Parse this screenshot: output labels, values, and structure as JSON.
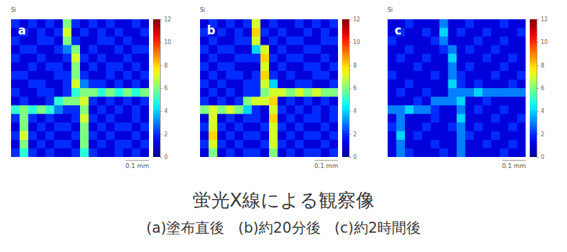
{
  "chart_data": [
    {
      "type": "heatmap",
      "title": "Si",
      "panel_label": "a",
      "scale_bar": "0.1 mm",
      "tick_labels": false,
      "colorbar": {
        "range": [
          0,
          12
        ],
        "ticks": [
          0,
          2,
          4,
          6,
          8,
          10,
          12
        ]
      },
      "cells": [
        [
          2,
          1,
          2,
          1,
          2,
          1,
          6,
          2,
          1,
          2,
          1,
          2,
          1,
          1,
          2,
          1
        ],
        [
          1,
          2,
          1,
          2,
          1,
          2,
          7,
          1,
          2,
          1,
          2,
          1,
          2,
          1,
          1,
          2
        ],
        [
          2,
          1,
          1,
          2,
          2,
          1,
          6,
          2,
          1,
          1,
          2,
          2,
          1,
          2,
          1,
          1
        ],
        [
          1,
          2,
          2,
          1,
          1,
          2,
          3,
          6,
          1,
          2,
          1,
          1,
          2,
          1,
          2,
          2
        ],
        [
          2,
          1,
          1,
          2,
          1,
          1,
          2,
          7,
          2,
          1,
          2,
          1,
          1,
          2,
          1,
          1
        ],
        [
          1,
          1,
          2,
          1,
          2,
          2,
          1,
          6,
          1,
          2,
          1,
          2,
          2,
          1,
          2,
          1
        ],
        [
          2,
          2,
          1,
          1,
          1,
          2,
          2,
          6,
          2,
          1,
          1,
          2,
          1,
          2,
          1,
          2
        ],
        [
          1,
          1,
          2,
          2,
          1,
          1,
          2,
          7,
          3,
          2,
          2,
          1,
          2,
          1,
          2,
          1
        ],
        [
          2,
          1,
          1,
          2,
          2,
          1,
          2,
          5,
          6,
          6,
          5,
          6,
          5,
          6,
          5,
          6
        ],
        [
          1,
          2,
          1,
          1,
          2,
          5,
          6,
          6,
          7,
          2,
          1,
          2,
          1,
          2,
          1,
          2
        ],
        [
          5,
          6,
          5,
          6,
          5,
          3,
          2,
          2,
          6,
          1,
          2,
          1,
          2,
          1,
          2,
          1
        ],
        [
          2,
          6,
          2,
          1,
          2,
          1,
          1,
          2,
          7,
          2,
          1,
          2,
          1,
          1,
          2,
          1
        ],
        [
          1,
          6,
          1,
          2,
          1,
          2,
          2,
          1,
          6,
          1,
          2,
          1,
          2,
          2,
          1,
          2
        ],
        [
          2,
          7,
          2,
          1,
          2,
          1,
          1,
          2,
          6,
          2,
          1,
          2,
          1,
          1,
          2,
          1
        ],
        [
          1,
          6,
          1,
          2,
          1,
          2,
          2,
          1,
          6,
          1,
          2,
          1,
          2,
          2,
          1,
          2
        ],
        [
          2,
          5,
          2,
          1,
          2,
          1,
          1,
          2,
          5,
          2,
          1,
          1,
          2,
          1,
          2,
          1
        ]
      ]
    },
    {
      "type": "heatmap",
      "title": "Si",
      "panel_label": "b",
      "scale_bar": "0.1 mm",
      "tick_labels": false,
      "colorbar": {
        "range": [
          0,
          12
        ],
        "ticks": [
          0,
          2,
          4,
          6,
          8,
          10,
          12
        ]
      },
      "cells": [
        [
          1,
          2,
          1,
          2,
          1,
          2,
          7,
          1,
          2,
          1,
          1,
          2,
          1,
          2,
          1,
          2
        ],
        [
          2,
          1,
          2,
          1,
          2,
          1,
          8,
          2,
          1,
          2,
          1,
          1,
          2,
          1,
          2,
          1
        ],
        [
          1,
          2,
          1,
          1,
          2,
          2,
          7,
          1,
          2,
          1,
          2,
          2,
          1,
          1,
          2,
          2
        ],
        [
          2,
          1,
          2,
          2,
          1,
          1,
          4,
          7,
          1,
          2,
          1,
          1,
          2,
          2,
          1,
          1
        ],
        [
          1,
          2,
          1,
          1,
          2,
          2,
          2,
          8,
          2,
          1,
          2,
          2,
          1,
          1,
          2,
          1
        ],
        [
          2,
          1,
          2,
          2,
          1,
          1,
          1,
          7,
          1,
          2,
          1,
          1,
          2,
          2,
          1,
          2
        ],
        [
          1,
          2,
          1,
          2,
          2,
          1,
          2,
          8,
          2,
          1,
          2,
          1,
          1,
          2,
          2,
          1
        ],
        [
          2,
          1,
          2,
          1,
          1,
          2,
          2,
          7,
          4,
          1,
          1,
          2,
          2,
          1,
          1,
          2
        ],
        [
          1,
          2,
          1,
          2,
          1,
          2,
          2,
          6,
          7,
          7,
          6,
          7,
          6,
          7,
          6,
          6
        ],
        [
          2,
          1,
          2,
          1,
          2,
          6,
          7,
          7,
          8,
          1,
          2,
          1,
          2,
          1,
          2,
          1
        ],
        [
          6,
          7,
          6,
          7,
          6,
          4,
          2,
          1,
          7,
          2,
          1,
          2,
          1,
          2,
          1,
          2
        ],
        [
          1,
          7,
          1,
          2,
          1,
          2,
          2,
          1,
          8,
          1,
          2,
          1,
          2,
          2,
          1,
          2
        ],
        [
          2,
          7,
          2,
          1,
          2,
          1,
          1,
          2,
          7,
          2,
          1,
          2,
          1,
          1,
          2,
          1
        ],
        [
          1,
          8,
          1,
          2,
          1,
          2,
          2,
          1,
          7,
          1,
          2,
          1,
          2,
          2,
          1,
          2
        ],
        [
          2,
          7,
          2,
          1,
          2,
          1,
          1,
          2,
          7,
          2,
          1,
          2,
          1,
          1,
          2,
          1
        ],
        [
          1,
          6,
          1,
          2,
          1,
          2,
          2,
          1,
          6,
          1,
          2,
          1,
          2,
          2,
          1,
          2
        ]
      ]
    },
    {
      "type": "heatmap",
      "title": "Si",
      "panel_label": "c",
      "scale_bar": "0.1 mm",
      "tick_labels": false,
      "colorbar": {
        "range": [
          0,
          12
        ],
        "ticks": [
          0,
          2,
          4,
          6,
          8,
          10,
          12
        ]
      },
      "cells": [
        [
          1,
          1,
          2,
          1,
          1,
          1,
          3,
          1,
          1,
          2,
          1,
          1,
          1,
          2,
          1,
          1
        ],
        [
          1,
          2,
          1,
          1,
          2,
          1,
          4,
          1,
          2,
          1,
          1,
          2,
          1,
          1,
          1,
          2
        ],
        [
          2,
          1,
          1,
          1,
          1,
          2,
          3,
          1,
          1,
          1,
          2,
          1,
          1,
          2,
          1,
          1
        ],
        [
          1,
          1,
          2,
          1,
          1,
          1,
          2,
          3,
          1,
          2,
          1,
          1,
          2,
          1,
          1,
          1
        ],
        [
          1,
          2,
          1,
          1,
          2,
          1,
          1,
          4,
          1,
          1,
          1,
          2,
          1,
          1,
          2,
          1
        ],
        [
          1,
          1,
          1,
          2,
          1,
          1,
          1,
          3,
          1,
          2,
          1,
          1,
          1,
          2,
          1,
          1
        ],
        [
          2,
          1,
          1,
          1,
          1,
          2,
          1,
          3,
          2,
          1,
          1,
          1,
          2,
          1,
          1,
          2
        ],
        [
          1,
          1,
          2,
          1,
          1,
          1,
          1,
          4,
          2,
          1,
          2,
          1,
          1,
          1,
          2,
          1
        ],
        [
          1,
          2,
          1,
          1,
          2,
          1,
          1,
          3,
          3,
          3,
          4,
          3,
          3,
          3,
          3,
          3
        ],
        [
          1,
          1,
          1,
          2,
          1,
          3,
          3,
          3,
          4,
          1,
          1,
          2,
          1,
          1,
          1,
          1
        ],
        [
          3,
          3,
          4,
          3,
          3,
          2,
          1,
          1,
          3,
          1,
          2,
          1,
          1,
          2,
          1,
          1
        ],
        [
          1,
          3,
          1,
          1,
          1,
          2,
          1,
          1,
          4,
          1,
          1,
          1,
          2,
          1,
          1,
          2
        ],
        [
          2,
          3,
          1,
          1,
          2,
          1,
          1,
          2,
          3,
          1,
          2,
          1,
          1,
          1,
          2,
          1
        ],
        [
          1,
          4,
          1,
          2,
          1,
          1,
          1,
          1,
          3,
          2,
          1,
          1,
          2,
          1,
          1,
          1
        ],
        [
          1,
          3,
          1,
          1,
          1,
          2,
          1,
          1,
          3,
          1,
          1,
          2,
          1,
          1,
          2,
          1
        ],
        [
          1,
          3,
          2,
          1,
          1,
          1,
          2,
          1,
          3,
          1,
          1,
          1,
          1,
          2,
          1,
          1
        ]
      ]
    }
  ],
  "caption": {
    "title": "蛍光X線による観察像",
    "subtitle": "(a)塗布直後   (b)約20分後   (c)約2時間後"
  }
}
